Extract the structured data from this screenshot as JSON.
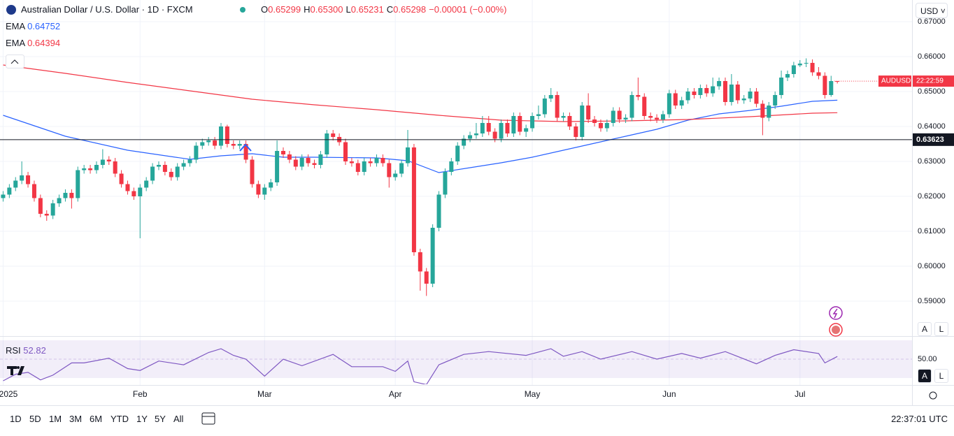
{
  "header": {
    "title": "Australian Dollar / U.S. Dollar · 1D · FXCM",
    "ohlc": [
      {
        "key": "O",
        "value": "0.65299"
      },
      {
        "key": "H",
        "value": "0.65300"
      },
      {
        "key": "L",
        "value": "0.65231"
      },
      {
        "key": "C",
        "value": "0.65298"
      }
    ],
    "change": "−0.00001 (−0.00%)",
    "currency": "USD",
    "scale_buttons": [
      "A",
      "L"
    ]
  },
  "toolbar": {
    "ranges": [
      "1D",
      "5D",
      "1M",
      "3M",
      "6M",
      "YTD",
      "1Y",
      "5Y",
      "All"
    ],
    "clock": "22:37:01 UTC"
  },
  "chart_data": [
    {
      "type": "candlestick",
      "up_color": "#26a69a",
      "down_color": "#f23645",
      "grid": true,
      "xlim": [
        -0.5,
        146
      ],
      "xticks": [
        {
          "value": 0,
          "label": "2025"
        },
        {
          "value": 22,
          "label": "Feb"
        },
        {
          "value": 42,
          "label": "Mar"
        },
        {
          "value": 63,
          "label": "Apr"
        },
        {
          "value": 85,
          "label": "May"
        },
        {
          "value": 107,
          "label": "Jun"
        },
        {
          "value": 128,
          "label": "Jul"
        }
      ],
      "ylim": [
        0.5802,
        0.6762
      ],
      "yticks": [
        {
          "value": 0.59,
          "label": "0.59000"
        },
        {
          "value": 0.6,
          "label": "0.60000"
        },
        {
          "value": 0.61,
          "label": "0.61000"
        },
        {
          "value": 0.62,
          "label": "0.62000"
        },
        {
          "value": 0.63,
          "label": "0.63000"
        },
        {
          "value": 0.64,
          "label": "0.64000"
        },
        {
          "value": 0.65,
          "label": "0.65000"
        },
        {
          "value": 0.66,
          "label": "0.66000"
        },
        {
          "value": 0.67,
          "label": "0.67000"
        }
      ],
      "x": [
        0,
        1,
        2,
        3,
        4,
        5,
        6,
        7,
        8,
        9,
        10,
        11,
        12,
        13,
        14,
        15,
        16,
        17,
        18,
        19,
        20,
        21,
        22,
        23,
        24,
        25,
        26,
        27,
        28,
        29,
        30,
        31,
        32,
        33,
        34,
        35,
        36,
        37,
        38,
        39,
        40,
        41,
        42,
        43,
        44,
        45,
        46,
        47,
        48,
        49,
        50,
        51,
        52,
        53,
        54,
        55,
        56,
        57,
        58,
        59,
        60,
        61,
        62,
        63,
        64,
        65,
        66,
        67,
        68,
        69,
        70,
        71,
        72,
        73,
        74,
        75,
        76,
        77,
        78,
        79,
        80,
        81,
        82,
        83,
        84,
        85,
        86,
        87,
        88,
        89,
        90,
        91,
        92,
        93,
        94,
        95,
        96,
        97,
        98,
        99,
        100,
        101,
        102,
        103,
        104,
        105,
        106,
        107,
        108,
        109,
        110,
        111,
        112,
        113,
        114,
        115,
        116,
        117,
        118,
        119,
        120,
        121,
        122,
        123,
        124,
        125,
        126,
        127,
        128,
        129,
        130,
        131,
        132,
        133,
        134
      ],
      "open": [
        0.6195,
        0.6205,
        0.6225,
        0.6245,
        0.626,
        0.6235,
        0.6195,
        0.615,
        0.6145,
        0.618,
        0.6195,
        0.621,
        0.6195,
        0.6275,
        0.628,
        0.6275,
        0.629,
        0.6305,
        0.63,
        0.6265,
        0.6235,
        0.6215,
        0.62,
        0.6225,
        0.6245,
        0.6285,
        0.629,
        0.627,
        0.6255,
        0.6285,
        0.6295,
        0.6305,
        0.6345,
        0.6355,
        0.636,
        0.6345,
        0.64,
        0.635,
        0.6345,
        0.635,
        0.6305,
        0.6235,
        0.6205,
        0.6225,
        0.624,
        0.633,
        0.632,
        0.6305,
        0.6285,
        0.631,
        0.6295,
        0.629,
        0.632,
        0.638,
        0.637,
        0.6355,
        0.63,
        0.6295,
        0.627,
        0.63,
        0.6295,
        0.631,
        0.6295,
        0.6255,
        0.6265,
        0.6295,
        0.634,
        0.604,
        0.5985,
        0.595,
        0.611,
        0.6205,
        0.627,
        0.63,
        0.6345,
        0.6365,
        0.6375,
        0.638,
        0.641,
        0.6385,
        0.6365,
        0.641,
        0.638,
        0.643,
        0.6385,
        0.6395,
        0.643,
        0.6435,
        0.648,
        0.649,
        0.6425,
        0.643,
        0.64,
        0.637,
        0.646,
        0.642,
        0.641,
        0.6395,
        0.641,
        0.6445,
        0.642,
        0.6425,
        0.649,
        0.6485,
        0.643,
        0.6425,
        0.642,
        0.6435,
        0.6495,
        0.646,
        0.6475,
        0.65,
        0.649,
        0.651,
        0.6495,
        0.6515,
        0.653,
        0.647,
        0.652,
        0.6475,
        0.648,
        0.65,
        0.6465,
        0.6425,
        0.646,
        0.649,
        0.654,
        0.655,
        0.6575,
        0.658,
        0.6582,
        0.6555,
        0.6545,
        0.649,
        0.65299
      ],
      "high": [
        0.6215,
        0.6235,
        0.6255,
        0.63,
        0.627,
        0.6245,
        0.6205,
        0.616,
        0.619,
        0.6205,
        0.622,
        0.622,
        0.6285,
        0.629,
        0.629,
        0.63,
        0.6335,
        0.6315,
        0.631,
        0.6275,
        0.6245,
        0.6225,
        0.6235,
        0.6255,
        0.6295,
        0.63,
        0.63,
        0.628,
        0.6295,
        0.6305,
        0.6315,
        0.6355,
        0.6365,
        0.637,
        0.637,
        0.641,
        0.6405,
        0.636,
        0.636,
        0.636,
        0.6315,
        0.6245,
        0.6235,
        0.625,
        0.636,
        0.634,
        0.633,
        0.6315,
        0.632,
        0.632,
        0.6305,
        0.633,
        0.639,
        0.639,
        0.638,
        0.6365,
        0.631,
        0.6305,
        0.631,
        0.631,
        0.632,
        0.632,
        0.6305,
        0.6275,
        0.6305,
        0.639,
        0.635,
        0.605,
        0.5995,
        0.612,
        0.6215,
        0.628,
        0.631,
        0.6355,
        0.6375,
        0.6385,
        0.641,
        0.643,
        0.643,
        0.6395,
        0.642,
        0.642,
        0.644,
        0.644,
        0.6405,
        0.644,
        0.646,
        0.649,
        0.651,
        0.65,
        0.644,
        0.644,
        0.641,
        0.647,
        0.6495,
        0.643,
        0.642,
        0.642,
        0.6455,
        0.6455,
        0.6435,
        0.65,
        0.654,
        0.6495,
        0.644,
        0.6435,
        0.6445,
        0.6505,
        0.6505,
        0.6485,
        0.651,
        0.651,
        0.652,
        0.652,
        0.654,
        0.654,
        0.654,
        0.655,
        0.653,
        0.649,
        0.651,
        0.651,
        0.6475,
        0.647,
        0.65,
        0.656,
        0.656,
        0.6585,
        0.659,
        0.6595,
        0.6592,
        0.657,
        0.6555,
        0.6545,
        0.653
      ],
      "low": [
        0.6185,
        0.6195,
        0.6215,
        0.6235,
        0.6225,
        0.6185,
        0.614,
        0.613,
        0.6135,
        0.617,
        0.6185,
        0.6165,
        0.6185,
        0.6265,
        0.6265,
        0.6265,
        0.628,
        0.629,
        0.6255,
        0.6225,
        0.6205,
        0.619,
        0.608,
        0.6215,
        0.6235,
        0.6275,
        0.626,
        0.6245,
        0.6245,
        0.6275,
        0.6285,
        0.6295,
        0.6335,
        0.6345,
        0.6335,
        0.6335,
        0.634,
        0.6335,
        0.6335,
        0.6295,
        0.6225,
        0.6195,
        0.619,
        0.6215,
        0.623,
        0.631,
        0.6295,
        0.6275,
        0.6275,
        0.6285,
        0.628,
        0.628,
        0.631,
        0.636,
        0.6345,
        0.629,
        0.6285,
        0.626,
        0.626,
        0.6285,
        0.6285,
        0.6285,
        0.6225,
        0.6245,
        0.6255,
        0.6285,
        0.603,
        0.593,
        0.5915,
        0.594,
        0.61,
        0.6195,
        0.626,
        0.629,
        0.6335,
        0.6355,
        0.6365,
        0.637,
        0.6375,
        0.6355,
        0.6355,
        0.637,
        0.637,
        0.6375,
        0.637,
        0.6385,
        0.642,
        0.6425,
        0.647,
        0.6415,
        0.6415,
        0.639,
        0.636,
        0.636,
        0.641,
        0.64,
        0.6385,
        0.6385,
        0.64,
        0.641,
        0.641,
        0.6415,
        0.6475,
        0.642,
        0.6415,
        0.641,
        0.641,
        0.6425,
        0.645,
        0.645,
        0.6465,
        0.648,
        0.648,
        0.6485,
        0.6485,
        0.6505,
        0.646,
        0.646,
        0.6465,
        0.6465,
        0.647,
        0.6455,
        0.6375,
        0.6415,
        0.645,
        0.648,
        0.653,
        0.654,
        0.657,
        0.657,
        0.6545,
        0.6535,
        0.648,
        0.6485,
        0.65231
      ],
      "close": [
        0.6205,
        0.6225,
        0.6245,
        0.626,
        0.6235,
        0.6195,
        0.615,
        0.6145,
        0.618,
        0.6195,
        0.621,
        0.6195,
        0.6275,
        0.628,
        0.6275,
        0.629,
        0.6305,
        0.63,
        0.6265,
        0.6235,
        0.6215,
        0.62,
        0.6225,
        0.6245,
        0.6285,
        0.629,
        0.627,
        0.6255,
        0.6285,
        0.6295,
        0.6305,
        0.6345,
        0.6355,
        0.636,
        0.6345,
        0.64,
        0.635,
        0.6345,
        0.635,
        0.6305,
        0.6235,
        0.6205,
        0.6225,
        0.624,
        0.633,
        0.632,
        0.6305,
        0.6285,
        0.631,
        0.6295,
        0.629,
        0.632,
        0.638,
        0.637,
        0.6355,
        0.63,
        0.6295,
        0.627,
        0.63,
        0.6295,
        0.631,
        0.6295,
        0.6255,
        0.6265,
        0.6295,
        0.634,
        0.604,
        0.5985,
        0.595,
        0.611,
        0.6205,
        0.627,
        0.63,
        0.6345,
        0.6365,
        0.6375,
        0.638,
        0.641,
        0.6385,
        0.6365,
        0.641,
        0.638,
        0.643,
        0.6385,
        0.6395,
        0.643,
        0.6435,
        0.648,
        0.649,
        0.6425,
        0.643,
        0.64,
        0.637,
        0.646,
        0.642,
        0.641,
        0.6395,
        0.641,
        0.6445,
        0.642,
        0.6425,
        0.649,
        0.6485,
        0.643,
        0.6425,
        0.642,
        0.6435,
        0.6495,
        0.646,
        0.6475,
        0.65,
        0.649,
        0.651,
        0.6495,
        0.6515,
        0.653,
        0.647,
        0.652,
        0.6475,
        0.648,
        0.65,
        0.6465,
        0.6425,
        0.646,
        0.649,
        0.654,
        0.655,
        0.6575,
        0.658,
        0.6582,
        0.6555,
        0.6545,
        0.649,
        0.653,
        0.65298
      ],
      "series": [
        {
          "name": "EMA",
          "color": "#2962ff",
          "x": [
            0,
            10,
            20,
            30,
            35,
            40,
            45,
            50,
            60,
            65,
            70,
            75,
            80,
            85,
            90,
            95,
            100,
            105,
            110,
            115,
            120,
            125,
            130,
            134
          ],
          "values": [
            0.6432,
            0.6372,
            0.6332,
            0.6306,
            0.6316,
            0.6322,
            0.6312,
            0.6312,
            0.631,
            0.6302,
            0.6268,
            0.6282,
            0.6296,
            0.6312,
            0.6332,
            0.6352,
            0.6372,
            0.6392,
            0.6418,
            0.6436,
            0.6446,
            0.6458,
            0.6472,
            0.64752
          ]
        },
        {
          "name": "EMA",
          "color": "#f23645",
          "x": [
            0,
            10,
            20,
            30,
            40,
            50,
            60,
            70,
            80,
            90,
            100,
            110,
            120,
            130,
            134
          ],
          "values": [
            0.6576,
            0.6552,
            0.6526,
            0.6502,
            0.6478,
            0.6462,
            0.6448,
            0.6432,
            0.6418,
            0.6414,
            0.6416,
            0.642,
            0.6428,
            0.6438,
            0.64394
          ]
        }
      ],
      "hline": {
        "value": 0.63623,
        "color": "#131722"
      },
      "last_price": {
        "symbol": "AUDUSD",
        "countdown": "22:22:59"
      }
    },
    {
      "type": "line",
      "title": "RSI",
      "color": "#7e57c2",
      "band": [
        30,
        70
      ],
      "ylim": [
        23.3,
        73.7
      ],
      "yticks": [
        {
          "value": 50,
          "label": "50.00"
        }
      ],
      "x": [
        0,
        2,
        4,
        6,
        8,
        11,
        13,
        17,
        20,
        22,
        25,
        29,
        33,
        35,
        37,
        39,
        42,
        45,
        48,
        53,
        56,
        61,
        63,
        65,
        66,
        68,
        70,
        74,
        78,
        84,
        88,
        90,
        93,
        96,
        101,
        105,
        109,
        112,
        116,
        121,
        124,
        127,
        131,
        132,
        134
      ],
      "values": [
        27,
        34,
        36,
        28,
        33,
        46,
        46,
        51,
        40,
        38,
        48,
        44,
        57,
        61,
        54,
        50,
        32,
        50,
        43,
        55,
        42,
        42,
        37,
        48,
        26,
        23,
        44,
        55,
        58,
        54,
        61,
        53,
        58,
        50,
        58,
        50,
        56,
        51,
        58,
        45,
        54,
        60,
        56,
        46,
        52.82
      ]
    }
  ]
}
